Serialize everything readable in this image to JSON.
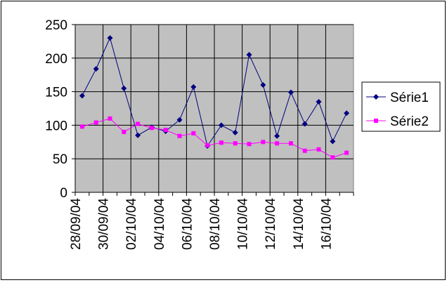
{
  "chart_data": {
    "type": "line",
    "categories": [
      "28/09/04",
      null,
      "30/09/04",
      null,
      "02/10/04",
      null,
      "04/10/04",
      null,
      "06/10/04",
      null,
      "08/10/04",
      null,
      "10/10/04",
      null,
      "12/10/04",
      null,
      "14/10/04",
      null,
      "16/10/04",
      null
    ],
    "series": [
      {
        "name": "Série1",
        "color": "#000080",
        "marker": "diamond",
        "values": [
          144,
          184,
          230,
          155,
          85,
          97,
          91,
          108,
          157,
          69,
          100,
          89,
          205,
          160,
          84,
          149,
          102,
          135,
          76,
          118
        ]
      },
      {
        "name": "Série2",
        "color": "#ff00ff",
        "marker": "square",
        "values": [
          98,
          104,
          110,
          90,
          102,
          96,
          93,
          84,
          88,
          70,
          74,
          73,
          72,
          75,
          73,
          73,
          62,
          64,
          52,
          59
        ]
      }
    ],
    "ylim": [
      0,
      250
    ],
    "yticks": [
      0,
      50,
      100,
      150,
      200,
      250
    ],
    "grid": true,
    "legend": "right"
  }
}
